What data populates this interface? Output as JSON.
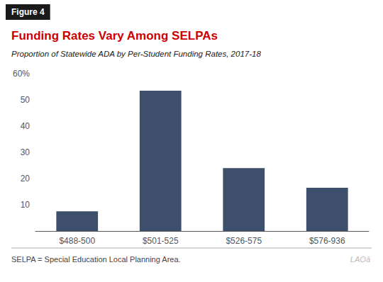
{
  "chart_data": {
    "type": "bar",
    "figure_label": "Figure 4",
    "title": "Funding Rates Vary Among SELPAs",
    "subtitle": "Proportion of Statewide ADA by Per-Student Funding Rates, 2017-18",
    "footer_note": "SELPA = Special Education Local Planning Area.",
    "watermark": "LAOâ",
    "categories": [
      "$488-500",
      "$501-525",
      "$526-575",
      "$576-936"
    ],
    "values": [
      7.5,
      53.5,
      24.0,
      16.5
    ],
    "color": "#3d4f6b",
    "ylim": [
      0,
      60
    ],
    "yticks": [
      10,
      20,
      30,
      40,
      50,
      {
        "value": 60,
        "label": "60%"
      }
    ],
    "grid": false
  }
}
